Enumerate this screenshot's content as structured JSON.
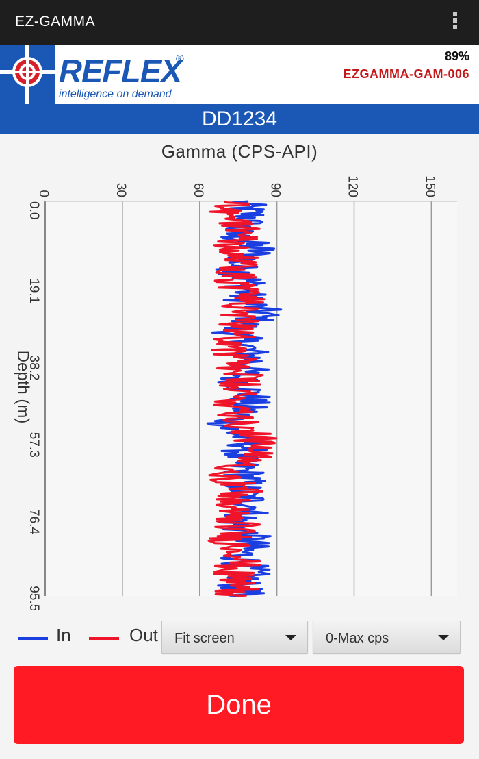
{
  "appbar": {
    "title": "EZ-GAMMA",
    "menu_icon": "overflow-menu-icon"
  },
  "brand": {
    "logo_word": "REFLEX",
    "registered": "®",
    "tagline": "intelligence on demand",
    "battery": "89%",
    "device_id": "EZGAMMA-GAM-006"
  },
  "hole_id": "DD1234",
  "colors": {
    "in": "#1a3ee0",
    "out": "#f0142a",
    "brand_blue": "#1b58b5",
    "done": "#ff1a24"
  },
  "chart_data": {
    "type": "line",
    "title": "Gamma (CPS-API)",
    "ylabel": "Depth (m)",
    "xlabel": "",
    "x_ticks": [
      "0",
      "30",
      "60",
      "90",
      "120",
      "150"
    ],
    "xlim": [
      0,
      160
    ],
    "y_ticks": [
      "0.0",
      "19.1",
      "38.2",
      "57.3",
      "76.4",
      "95.5"
    ],
    "ylim": [
      0,
      98
    ],
    "grid": true,
    "y_inverted": true,
    "series": [
      {
        "name": "In",
        "depth": [
          0,
          4,
          8,
          12,
          16,
          20,
          24,
          28,
          32,
          36,
          40,
          44,
          48,
          52,
          56,
          60,
          64,
          68,
          72,
          76,
          80,
          84,
          88,
          92,
          96,
          98
        ],
        "gamma": [
          76,
          80,
          72,
          83,
          74,
          79,
          77,
          85,
          73,
          78,
          81,
          75,
          80,
          77,
          70,
          80,
          74,
          78,
          76,
          82,
          74,
          80,
          76,
          79,
          75,
          77
        ]
      },
      {
        "name": "Out",
        "depth": [
          0,
          4,
          8,
          12,
          16,
          20,
          24,
          28,
          32,
          36,
          40,
          44,
          48,
          52,
          56,
          60,
          64,
          68,
          72,
          76,
          80,
          84,
          88,
          92,
          96,
          98
        ],
        "gamma": [
          74,
          72,
          79,
          71,
          77,
          73,
          80,
          72,
          78,
          72,
          74,
          76,
          73,
          75,
          78,
          82,
          79,
          72,
          76,
          70,
          75,
          72,
          78,
          72,
          76,
          74
        ]
      }
    ]
  },
  "legend": {
    "in_label": "In",
    "out_label": "Out"
  },
  "controls": {
    "scale_select": "Fit screen",
    "range_select": "0-Max cps",
    "done_label": "Done"
  }
}
